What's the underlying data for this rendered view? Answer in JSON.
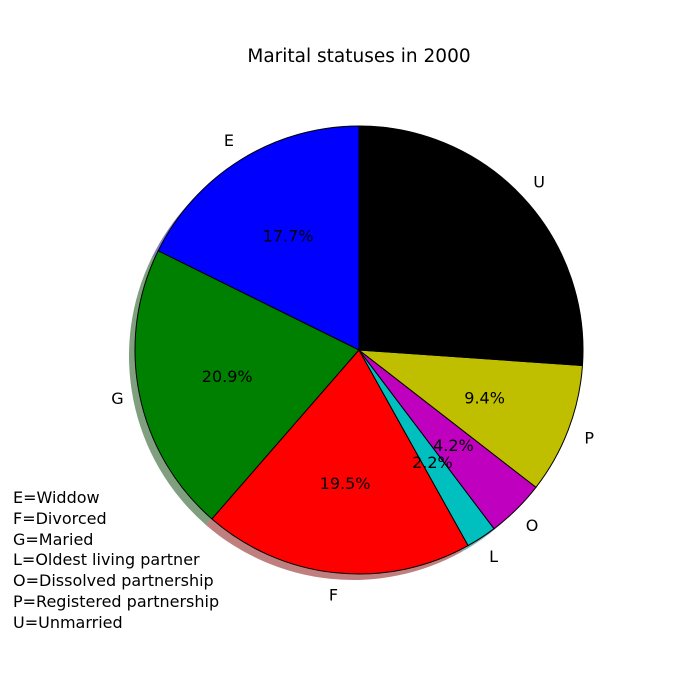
{
  "chart_data": {
    "type": "pie",
    "title": "Marital statuses in 2000",
    "start_angle_deg": 90,
    "direction": "counterclockwise",
    "shadow": true,
    "slices": [
      {
        "label": "E",
        "value": 17.7,
        "pct_label": "17.7%",
        "color": "#0000ff"
      },
      {
        "label": "G",
        "value": 20.9,
        "pct_label": "20.9%",
        "color": "#008000"
      },
      {
        "label": "F",
        "value": 19.5,
        "pct_label": "19.5%",
        "color": "#ff0000"
      },
      {
        "label": "L",
        "value": 2.2,
        "pct_label": "2.2%",
        "color": "#00bfbf"
      },
      {
        "label": "O",
        "value": 4.2,
        "pct_label": "4.2%",
        "color": "#bf00bf"
      },
      {
        "label": "P",
        "value": 9.4,
        "pct_label": "9.4%",
        "color": "#bfbf00"
      },
      {
        "label": "U",
        "value": 26.1,
        "pct_label": "",
        "color": "#000000"
      }
    ],
    "legend": [
      "E=Widdow",
      "F=Divorced",
      "G=Maried",
      "L=Oldest living partner",
      "O=Dissolved partnership",
      "P=Registered partnership",
      "U=Unmarried"
    ],
    "legend_position": "lower-left"
  }
}
